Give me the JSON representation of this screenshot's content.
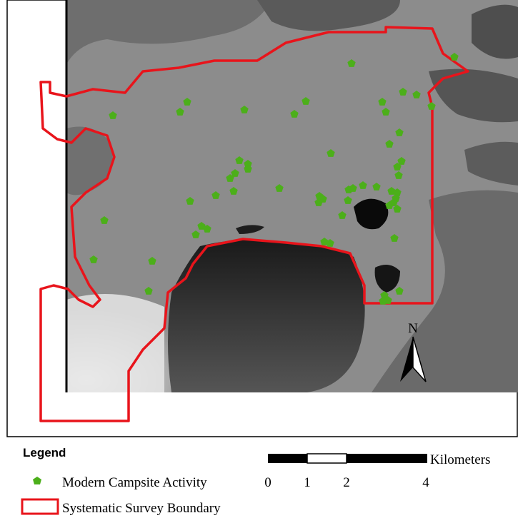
{
  "legend": {
    "title": "Legend",
    "items": [
      "Modern Campsite Activity",
      "Systematic Survey Boundary"
    ]
  },
  "scale_bar": {
    "labels": [
      "0",
      "1",
      "2",
      "4"
    ],
    "unit": "Kilometers"
  },
  "north_arrow": "N"
}
